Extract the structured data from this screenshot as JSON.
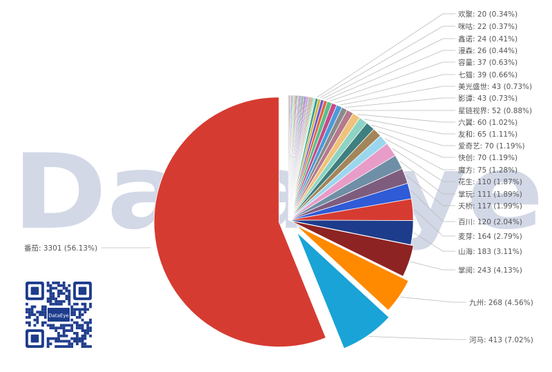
{
  "watermark": {
    "text": "DataEye"
  },
  "qr": {
    "center_text": "DataEye"
  },
  "chart_data": {
    "type": "pie",
    "title": "",
    "slices": [
      {
        "name": "番茄",
        "value": 3301,
        "percent": "56.13%",
        "color": "#d63b31"
      },
      {
        "name": "河马",
        "value": 413,
        "percent": "7.02%",
        "color": "#1aa3d6"
      },
      {
        "name": "九州",
        "value": 268,
        "percent": "4.56%",
        "color": "#ff8a00"
      },
      {
        "name": "掌阅",
        "value": 243,
        "percent": "4.13%",
        "color": "#8e2323"
      },
      {
        "name": "山海",
        "value": 183,
        "percent": "3.11%",
        "color": "#1e3c8c"
      },
      {
        "name": "麦芽",
        "value": 164,
        "percent": "2.79%",
        "color": "#d63b31"
      },
      {
        "name": "百川",
        "value": 120,
        "percent": "2.04%",
        "color": "#2f5bd6"
      },
      {
        "name": "天桥",
        "value": 117,
        "percent": "1.99%",
        "color": "#7e5c7e"
      },
      {
        "name": "掌玩",
        "value": 111,
        "percent": "1.89%",
        "color": "#6f8fa6"
      },
      {
        "name": "花生",
        "value": 110,
        "percent": "1.87%",
        "color": "#e89cc8"
      },
      {
        "name": "魔方",
        "value": 75,
        "percent": "1.28%",
        "color": "#9ad7ee"
      },
      {
        "name": "快创",
        "value": 70,
        "percent": "1.19%",
        "color": "#a3855a"
      },
      {
        "name": "爱奇艺",
        "value": 70,
        "percent": "1.19%",
        "color": "#3f7f7f"
      },
      {
        "name": "友和",
        "value": 65,
        "percent": "1.11%",
        "color": "#8ed3c3"
      },
      {
        "name": "六翼",
        "value": 60,
        "percent": "1.02%",
        "color": "#f0c27b"
      },
      {
        "name": "星链视界",
        "value": 52,
        "percent": "0.88%",
        "color": "#b57a8c"
      },
      {
        "name": "影谭",
        "value": 43,
        "percent": "0.73%",
        "color": "#8a8a8a"
      },
      {
        "name": "美光盛世",
        "value": 43,
        "percent": "0.73%",
        "color": "#4a9bd8"
      },
      {
        "name": "七猫",
        "value": 39,
        "percent": "0.66%",
        "color": "#c84a8a"
      },
      {
        "name": "容量",
        "value": 37,
        "percent": "0.63%",
        "color": "#5bbf8a"
      },
      {
        "name": "漫森",
        "value": 26,
        "percent": "0.44%",
        "color": "#e0673c"
      },
      {
        "name": "鑫诺",
        "value": 24,
        "percent": "0.41%",
        "color": "#6d5bd0"
      },
      {
        "name": "咪咕",
        "value": 22,
        "percent": "0.37%",
        "color": "#d8b23a"
      },
      {
        "name": "欢聚",
        "value": 20,
        "percent": "0.34%",
        "color": "#2a9d8f"
      }
    ],
    "unlabeled_small_slices_colors": [
      "#e76f51",
      "#457b9d",
      "#a8dadc",
      "#f4a261",
      "#9b5de5",
      "#00bbf9",
      "#f15bb5",
      "#fee440",
      "#00f5d4",
      "#8ac926",
      "#ff595e",
      "#6a4c93",
      "#1982c4",
      "#ffca3a",
      "#c77dff",
      "#3a86ff",
      "#fb5607",
      "#8338ec",
      "#06d6a0",
      "#ef476f",
      "#118ab2",
      "#073b4c",
      "#ffd166",
      "#26547c",
      "#b5179e",
      "#7209b7",
      "#4cc9f0",
      "#f72585",
      "#4361ee",
      "#90be6d",
      "#f9844a",
      "#577590",
      "#43aa8b",
      "#f94144",
      "#f3722c",
      "#277da1",
      "#99d98c",
      "#52b69a",
      "#d9ed92",
      "#34a0a4"
    ],
    "legend": "none"
  }
}
